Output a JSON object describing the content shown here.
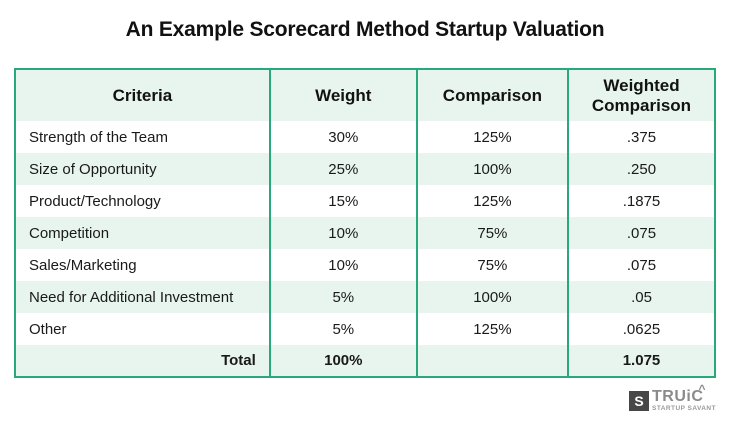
{
  "page": {
    "title": "An Example Scorecard Method Startup Valuation"
  },
  "colors": {
    "accent_green_border": "#2aa87d",
    "row_mint_background": "#e7f5ee",
    "text_dark": "#121212",
    "logo_gray": "#8b8b8b",
    "logo_square_dark": "#474747",
    "page_background": "#ffffff"
  },
  "chart_data": {
    "type": "table",
    "title": "An Example Scorecard Method Startup Valuation",
    "columns": [
      "Criteria",
      "Weight",
      "Comparison",
      "Weighted Comparison"
    ],
    "rows": [
      [
        "Strength of the Team",
        "30%",
        "125%",
        ".375"
      ],
      [
        "Size of Opportunity",
        "25%",
        "100%",
        ".250"
      ],
      [
        "Product/Technology",
        "15%",
        "125%",
        ".1875"
      ],
      [
        "Competition",
        "10%",
        "75%",
        ".075"
      ],
      [
        "Sales/Marketing",
        "10%",
        "75%",
        ".075"
      ],
      [
        "Need for Additional Investment",
        "5%",
        "100%",
        ".05"
      ],
      [
        "Other",
        "5%",
        "125%",
        ".0625"
      ],
      [
        "Total",
        "100%",
        "",
        "1.075"
      ]
    ],
    "layout_hints": {
      "header_background": "mint",
      "alternating_row_shading": true,
      "total_row_bold": true,
      "grid": "vertical-borders-only"
    }
  },
  "logo": {
    "square_letter": "S",
    "brand": "TRUiC",
    "caret": "^",
    "tagline": "STARTUP SAVANT"
  }
}
